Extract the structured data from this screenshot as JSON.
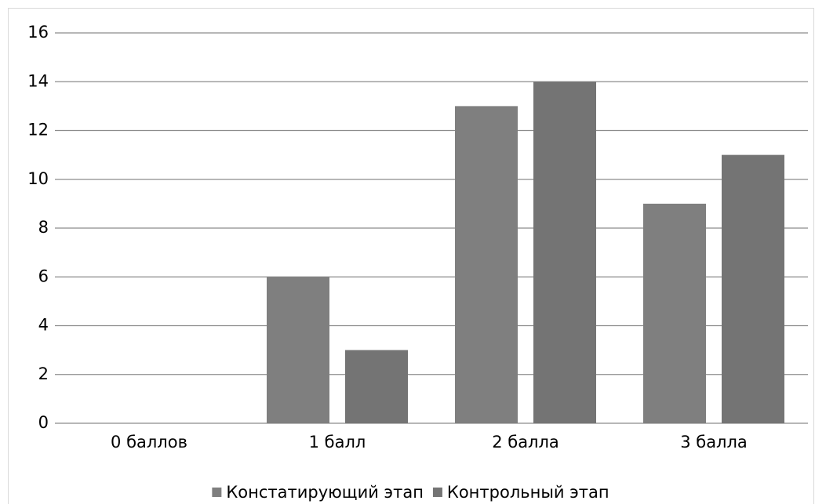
{
  "chart_data": {
    "type": "bar",
    "categories": [
      "0 баллов",
      "1 балл",
      "2 балла",
      "3 балла"
    ],
    "series": [
      {
        "name": "Констатирующий этап",
        "color": "#7f7f7f",
        "values": [
          0,
          6,
          13,
          9
        ]
      },
      {
        "name": "Контрольный этап",
        "color": "#747474",
        "values": [
          0,
          3,
          14,
          11
        ]
      }
    ],
    "ylim": [
      0,
      16
    ],
    "yticks": [
      0,
      2,
      4,
      6,
      8,
      10,
      12,
      14,
      16
    ],
    "grid": true,
    "legend": "bottom"
  }
}
